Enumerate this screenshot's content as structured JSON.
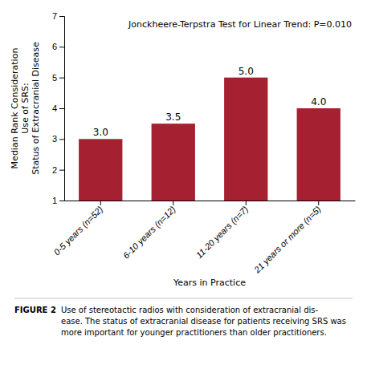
{
  "chart_data": {
    "type": "bar",
    "categories": [
      "0-5 years (n=52)",
      "6-10 years (n=12)",
      "11-20 years (n=7)",
      "21 years or more (n=5)"
    ],
    "values": [
      3.0,
      3.5,
      5.0,
      4.0
    ],
    "value_labels": [
      "3.0",
      "3.5",
      "5.0",
      "4.0"
    ],
    "data_labels": true,
    "color": "#a52030",
    "ylim": [
      1,
      7
    ],
    "yticks": [
      1,
      2,
      3,
      4,
      5,
      6,
      7
    ],
    "ylabel": [
      "Median Rank Consideration",
      "Use of SRS:",
      "Status of Extracranial Disease"
    ],
    "xlabel": "Years in Practice",
    "annotations": [
      "Jonckheere-Terpstra Test for Linear Trend: P=0.010"
    ],
    "caption_label": "FIGURE 2",
    "caption": [
      "Use of stereotactic radios with consideration of extracranial dis-",
      "ease. The status of extracranial disease for patients receiving SRS was",
      "more important for younger practitioners than older practitioners."
    ],
    "grid": false
  }
}
